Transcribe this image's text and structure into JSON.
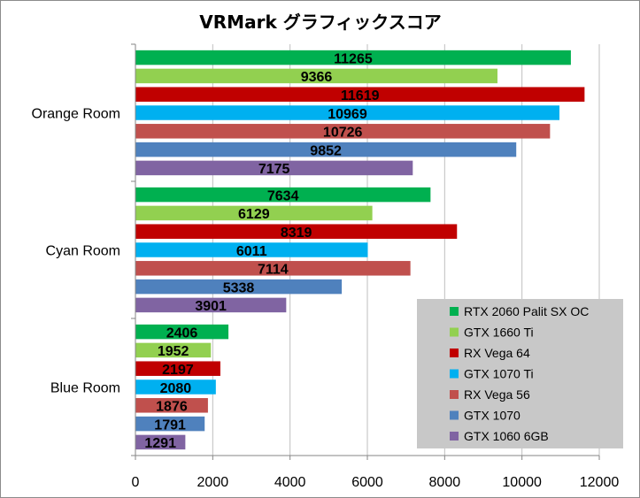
{
  "chart_data": {
    "type": "bar",
    "orientation": "horizontal",
    "title": "VRMark グラフィックスコア",
    "categories": [
      "Orange Room",
      "Cyan Room",
      "Blue Room"
    ],
    "series": [
      {
        "name": "RTX 2060 Palit SX OC",
        "color": "#00b050",
        "values": [
          11265,
          7634,
          2406
        ]
      },
      {
        "name": "GTX 1660 Ti",
        "color": "#92d050",
        "values": [
          9366,
          6129,
          1952
        ]
      },
      {
        "name": "RX Vega 64",
        "color": "#c00000",
        "values": [
          11619,
          8319,
          2197
        ]
      },
      {
        "name": "GTX 1070 Ti",
        "color": "#00b0f0",
        "values": [
          10969,
          6011,
          2080
        ]
      },
      {
        "name": "RX Vega 56",
        "color": "#c0504d",
        "values": [
          10726,
          7114,
          1876
        ]
      },
      {
        "name": "GTX 1070",
        "color": "#4f81bd",
        "values": [
          9852,
          5338,
          1791
        ]
      },
      {
        "name": "GTX 1060 6GB",
        "color": "#8064a2",
        "values": [
          7175,
          3901,
          1291
        ]
      }
    ],
    "xlim": [
      0,
      12000
    ],
    "xticks": [
      0,
      2000,
      4000,
      6000,
      8000,
      10000,
      12000
    ],
    "grid": true,
    "legend_position": "bottom-right",
    "legend_background": "#c8c8c8"
  }
}
